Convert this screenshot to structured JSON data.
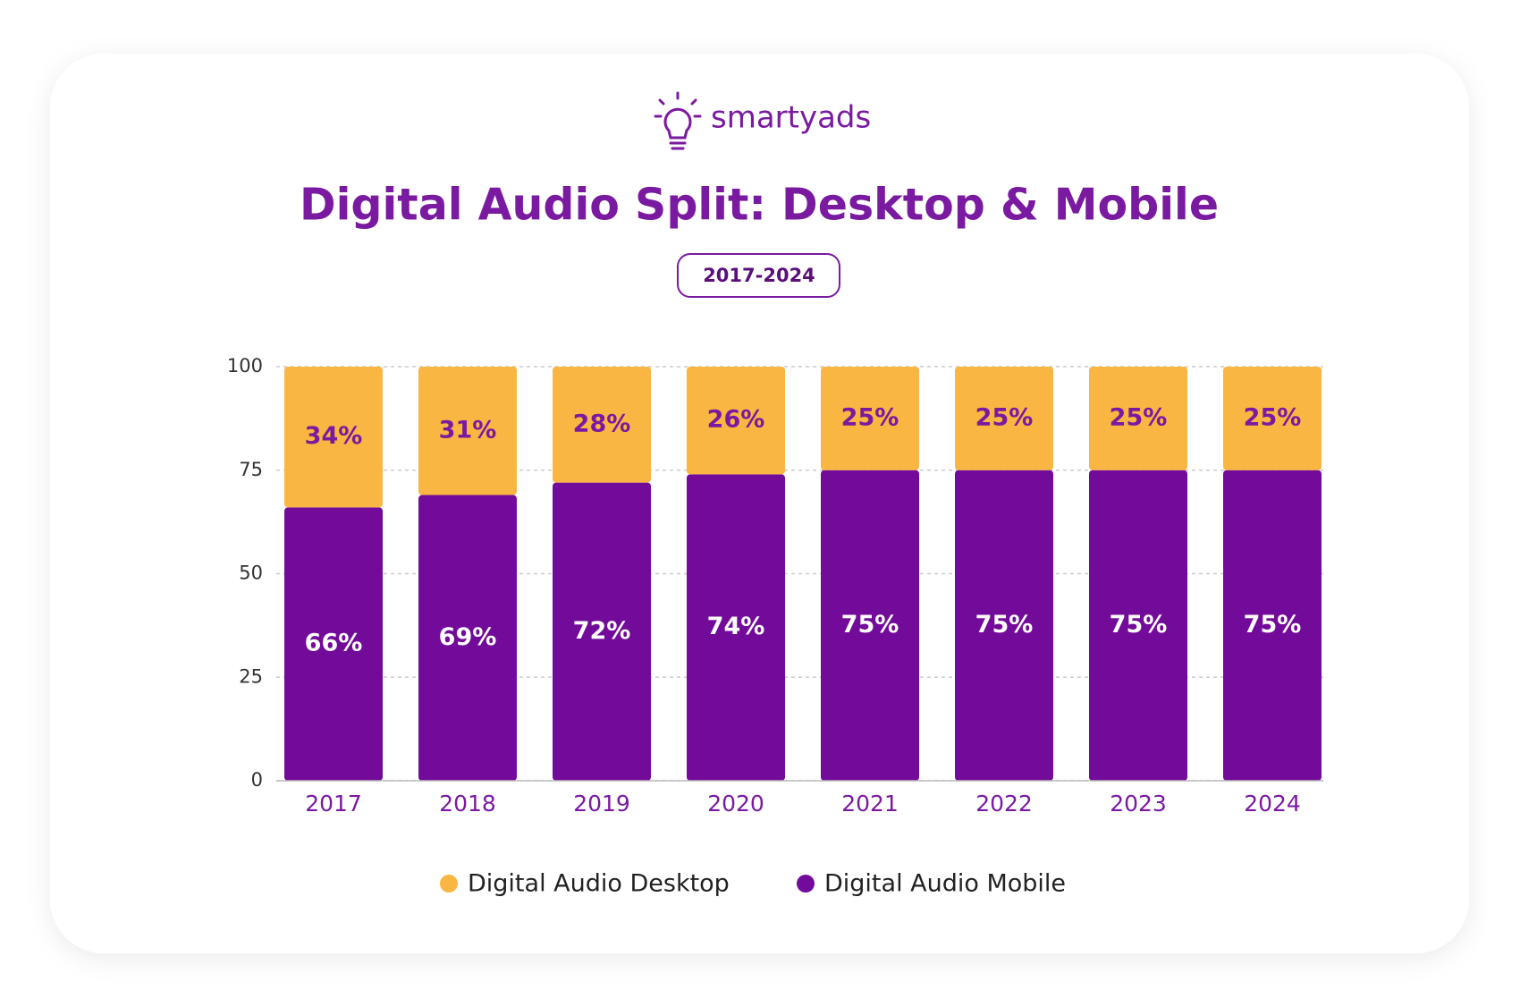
{
  "logo": "smartyads",
  "chart_data": {
    "type": "stacked-bar",
    "title": "Digital Audio Split: Desktop & Mobile",
    "subtitle": "2017-2024",
    "categories": [
      "2017",
      "2018",
      "2019",
      "2020",
      "2021",
      "2022",
      "2023",
      "2024"
    ],
    "series": [
      {
        "name": "Digital Audio Desktop",
        "color": "#f9b642",
        "values": [
          34,
          31,
          28,
          26,
          25,
          25,
          25,
          25
        ],
        "value_labels": [
          "34%",
          "31%",
          "28%",
          "26%",
          "25%",
          "25%",
          "25%",
          "25%"
        ]
      },
      {
        "name": "Digital Audio Mobile",
        "color": "#730b9a",
        "values": [
          66,
          69,
          72,
          74,
          75,
          75,
          75,
          75
        ],
        "value_labels": [
          "66%",
          "69%",
          "72%",
          "74%",
          "75%",
          "75%",
          "75%",
          "75%"
        ]
      }
    ],
    "ylim": [
      0,
      100
    ],
    "yticks": [
      0,
      25,
      50,
      75,
      100
    ],
    "grid": true
  }
}
